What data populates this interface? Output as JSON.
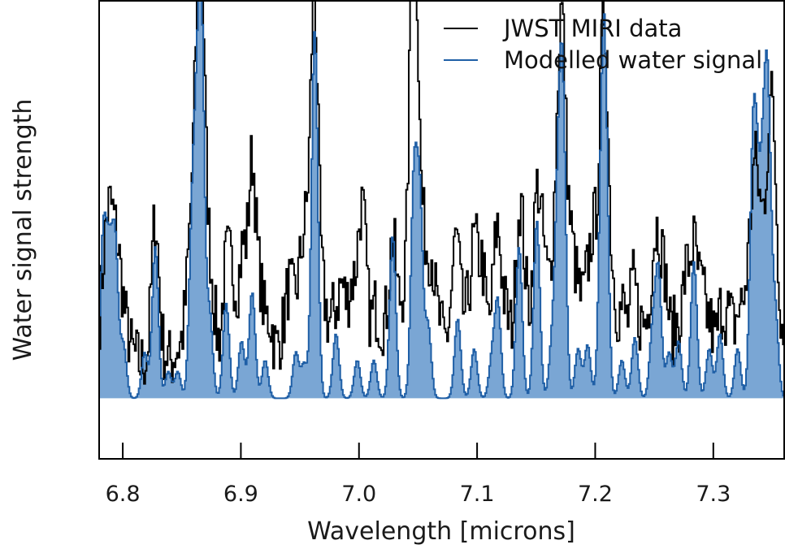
{
  "chart_data": {
    "type": "line",
    "title": "",
    "xlabel": "Wavelength [microns]",
    "ylabel": "Water signal strength",
    "xlim": [
      6.78,
      7.36
    ],
    "ylim": [
      -0.16,
      1.05
    ],
    "grid": false,
    "legend_position": "top-right",
    "xticks": [
      6.8,
      6.9,
      7.0,
      7.1,
      7.2,
      7.3
    ],
    "xtick_labels": [
      "6.8",
      "6.9",
      "7.0",
      "7.1",
      "7.2",
      "7.3"
    ],
    "colors": {
      "data": "#000000",
      "model": "#1f5fa6",
      "model_fill": "#7aa6d4",
      "axes": "#000000"
    },
    "series": [
      {
        "name": "JWST MIRI data",
        "style": "step",
        "peaks": [
          [
            6.782,
            0.17
          ],
          [
            6.787,
            0.32
          ],
          [
            6.792,
            0.27
          ],
          [
            6.797,
            0.21
          ],
          [
            6.803,
            0.1
          ],
          [
            6.81,
            0.05
          ],
          [
            6.818,
            0.04
          ],
          [
            6.827,
            0.42
          ],
          [
            6.836,
            0.06
          ],
          [
            6.845,
            0.07
          ],
          [
            6.852,
            0.09
          ],
          [
            6.857,
            0.28
          ],
          [
            6.862,
            0.47
          ],
          [
            6.866,
            0.9
          ],
          [
            6.872,
            0.24
          ],
          [
            6.877,
            0.12
          ],
          [
            6.887,
            0.28
          ],
          [
            6.893,
            0.22
          ],
          [
            6.901,
            0.32
          ],
          [
            6.909,
            0.55
          ],
          [
            6.916,
            0.21
          ],
          [
            6.924,
            0.15
          ],
          [
            6.933,
            0.09
          ],
          [
            6.94,
            0.22
          ],
          [
            6.947,
            0.18
          ],
          [
            6.953,
            0.3
          ],
          [
            6.958,
            0.18
          ],
          [
            6.962,
            0.92
          ],
          [
            6.97,
            0.18
          ],
          [
            6.978,
            0.15
          ],
          [
            6.985,
            0.23
          ],
          [
            6.993,
            0.22
          ],
          [
            7.0,
            0.27
          ],
          [
            7.004,
            0.28
          ],
          [
            7.013,
            0.17
          ],
          [
            7.02,
            0.12
          ],
          [
            7.028,
            0.36
          ],
          [
            7.036,
            0.18
          ],
          [
            7.044,
            0.58
          ],
          [
            7.047,
            0.88
          ],
          [
            7.054,
            0.32
          ],
          [
            7.061,
            0.29
          ],
          [
            7.068,
            0.12
          ],
          [
            7.076,
            0.1
          ],
          [
            7.082,
            0.35
          ],
          [
            7.09,
            0.14
          ],
          [
            7.097,
            0.33
          ],
          [
            7.104,
            0.27
          ],
          [
            7.112,
            0.1
          ],
          [
            7.117,
            0.36
          ],
          [
            7.124,
            0.15
          ],
          [
            7.131,
            0.08
          ],
          [
            7.136,
            0.42
          ],
          [
            7.142,
            0.13
          ],
          [
            7.15,
            0.45
          ],
          [
            7.156,
            0.27
          ],
          [
            7.163,
            0.2
          ],
          [
            7.168,
            0.39
          ],
          [
            7.172,
            0.74
          ],
          [
            7.179,
            0.3
          ],
          [
            7.185,
            0.18
          ],
          [
            7.192,
            0.2
          ],
          [
            7.198,
            0.33
          ],
          [
            7.205,
            0.43
          ],
          [
            7.208,
            0.64
          ],
          [
            7.215,
            0.2
          ],
          [
            7.223,
            0.18
          ],
          [
            7.232,
            0.25
          ],
          [
            7.24,
            0.13
          ],
          [
            7.248,
            0.23
          ],
          [
            7.253,
            0.29
          ],
          [
            7.259,
            0.22
          ],
          [
            7.268,
            0.13
          ],
          [
            7.276,
            0.25
          ],
          [
            7.283,
            0.32
          ],
          [
            7.29,
            0.2
          ],
          [
            7.297,
            0.13
          ],
          [
            7.306,
            0.17
          ],
          [
            7.313,
            0.15
          ],
          [
            7.321,
            0.16
          ],
          [
            7.328,
            0.2
          ],
          [
            7.334,
            0.45
          ],
          [
            7.339,
            0.28
          ],
          [
            7.345,
            0.36
          ],
          [
            7.35,
            0.6
          ],
          [
            7.357,
            0.12
          ]
        ],
        "noise_amplitude": 0.09,
        "baseline": 0.06,
        "peak_width": 0.0032
      },
      {
        "name": "Modelled water signal",
        "style": "step-filled",
        "peaks": [
          [
            6.783,
            0.42
          ],
          [
            6.788,
            0.33
          ],
          [
            6.793,
            0.4
          ],
          [
            6.8,
            0.14
          ],
          [
            6.818,
            0.12
          ],
          [
            6.827,
            0.4
          ],
          [
            6.838,
            0.07
          ],
          [
            6.846,
            0.07
          ],
          [
            6.858,
            0.4
          ],
          [
            6.862,
            0.5
          ],
          [
            6.866,
            0.96
          ],
          [
            6.873,
            0.22
          ],
          [
            6.887,
            0.25
          ],
          [
            6.9,
            0.15
          ],
          [
            6.909,
            0.28
          ],
          [
            6.92,
            0.1
          ],
          [
            6.946,
            0.12
          ],
          [
            6.953,
            0.09
          ],
          [
            6.962,
            0.97
          ],
          [
            6.98,
            0.17
          ],
          [
            6.998,
            0.1
          ],
          [
            7.012,
            0.1
          ],
          [
            7.028,
            0.43
          ],
          [
            7.046,
            0.56
          ],
          [
            7.051,
            0.5
          ],
          [
            7.058,
            0.19
          ],
          [
            7.083,
            0.21
          ],
          [
            7.097,
            0.13
          ],
          [
            7.112,
            0.1
          ],
          [
            7.117,
            0.25
          ],
          [
            7.135,
            0.4
          ],
          [
            7.15,
            0.47
          ],
          [
            7.163,
            0.14
          ],
          [
            7.168,
            0.47
          ],
          [
            7.172,
            0.76
          ],
          [
            7.185,
            0.13
          ],
          [
            7.193,
            0.14
          ],
          [
            7.205,
            0.51
          ],
          [
            7.208,
            0.69
          ],
          [
            7.222,
            0.1
          ],
          [
            7.233,
            0.16
          ],
          [
            7.248,
            0.17
          ],
          [
            7.253,
            0.33
          ],
          [
            7.262,
            0.12
          ],
          [
            7.27,
            0.15
          ],
          [
            7.283,
            0.36
          ],
          [
            7.296,
            0.13
          ],
          [
            7.305,
            0.17
          ],
          [
            7.32,
            0.13
          ],
          [
            7.333,
            0.62
          ],
          [
            7.337,
            0.43
          ],
          [
            7.342,
            0.53
          ],
          [
            7.346,
            0.68
          ],
          [
            7.352,
            0.22
          ]
        ],
        "baseline": 0.0,
        "peak_width": 0.0026
      }
    ]
  }
}
